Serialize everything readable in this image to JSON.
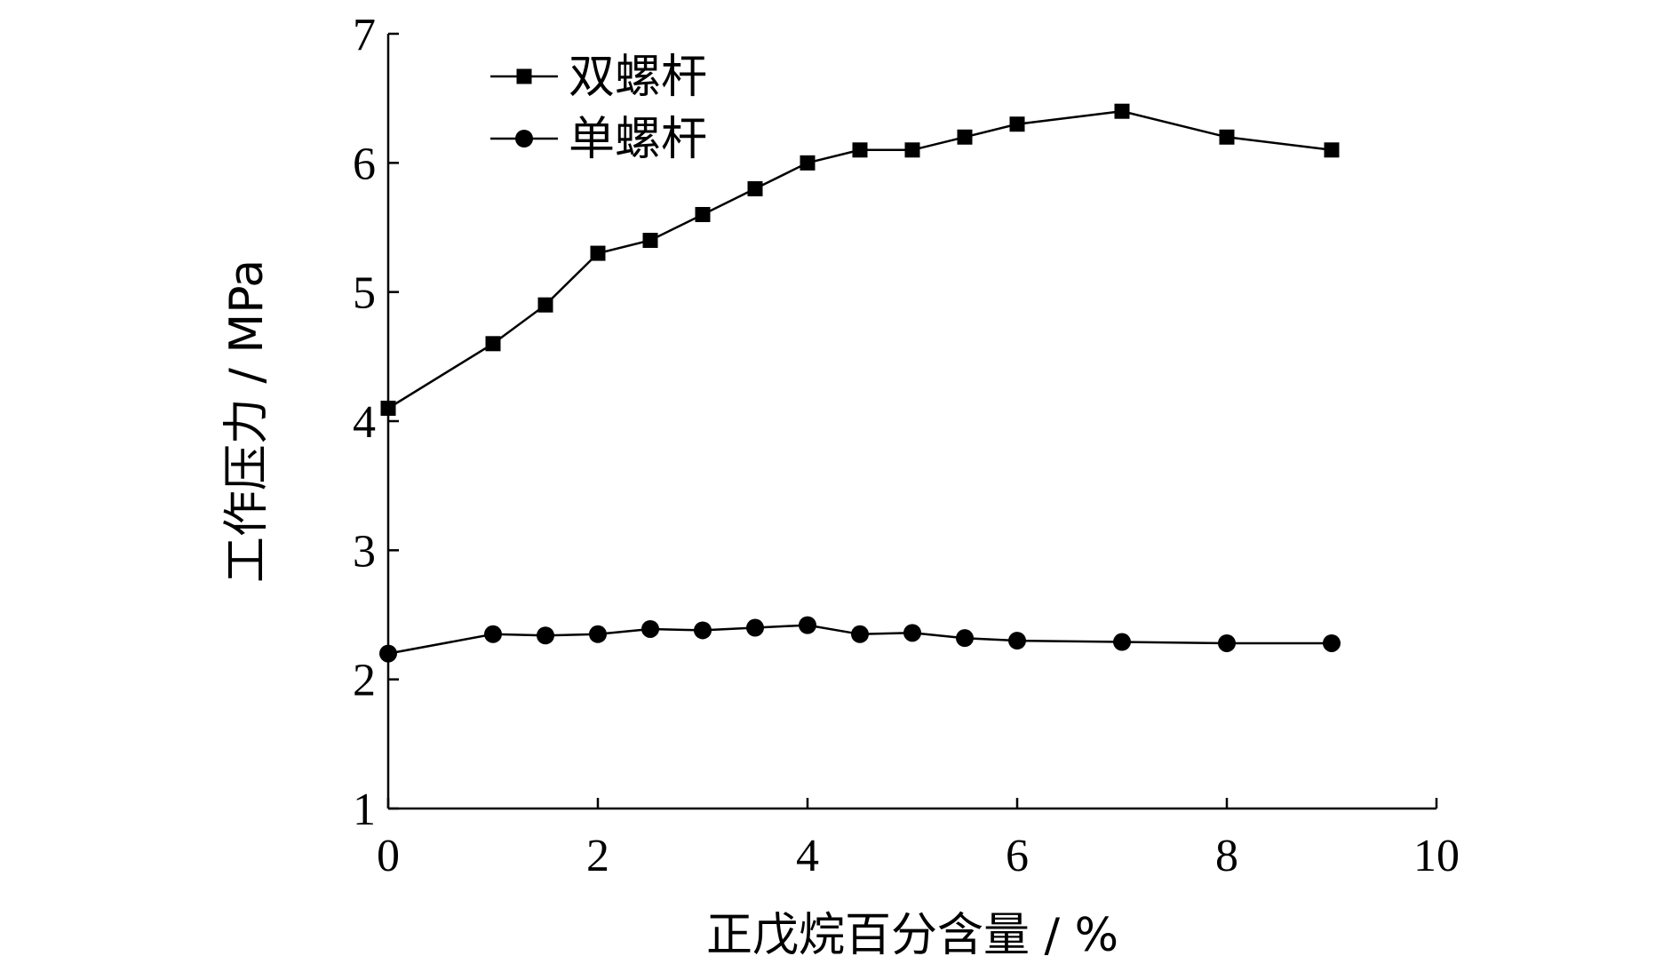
{
  "chart_data": {
    "type": "line",
    "xlabel": "正戊烷百分含量 / %",
    "ylabel": "工作压力 / MPa",
    "xlim": [
      0,
      10
    ],
    "ylim": [
      1,
      7
    ],
    "xticks": [
      0,
      2,
      4,
      6,
      8,
      10
    ],
    "yticks": [
      1,
      2,
      3,
      4,
      5,
      6,
      7
    ],
    "grid": false,
    "legend_position": "top-left",
    "series": [
      {
        "name": "双螺杆",
        "marker": "square",
        "color": "#000000",
        "x": [
          0,
          1,
          1.5,
          2,
          2.5,
          3,
          3.5,
          4,
          4.5,
          5,
          5.5,
          6,
          7,
          8,
          9
        ],
        "y": [
          4.1,
          4.6,
          4.9,
          5.3,
          5.4,
          5.6,
          5.8,
          6.0,
          6.1,
          6.1,
          6.2,
          6.3,
          6.4,
          6.2,
          6.1
        ]
      },
      {
        "name": "单螺杆",
        "marker": "circle",
        "color": "#000000",
        "x": [
          0,
          1,
          1.5,
          2,
          2.5,
          3,
          3.5,
          4,
          4.5,
          5,
          5.5,
          6,
          7,
          8,
          9
        ],
        "y": [
          2.2,
          2.35,
          2.34,
          2.35,
          2.39,
          2.38,
          2.4,
          2.42,
          2.35,
          2.36,
          2.32,
          2.3,
          2.29,
          2.28,
          2.28
        ]
      }
    ]
  }
}
